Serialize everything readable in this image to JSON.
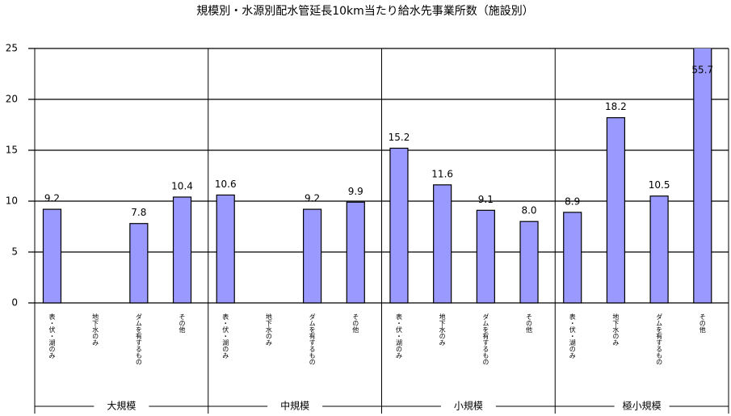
{
  "chart_data": {
    "type": "bar",
    "title": "規模別・水源別配水管延長10km当たり給水先事業所数（施設別）",
    "groups": [
      "大規模",
      "中規模",
      "小規模",
      "極小規模"
    ],
    "categories": [
      "表・伏・湖のみ",
      "地下水のみ",
      "ダムを有するもの",
      "その他",
      "表・伏・湖のみ",
      "地下水のみ",
      "ダムを有するもの",
      "その他",
      "表・伏・湖のみ",
      "地下水のみ",
      "ダムを有するもの",
      "その他",
      "表・伏・湖のみ",
      "地下水のみ",
      "ダムを有するもの",
      "その他"
    ],
    "values": [
      9.2,
      null,
      7.8,
      10.4,
      10.6,
      null,
      9.2,
      9.9,
      15.2,
      11.6,
      9.1,
      8.0,
      8.9,
      18.2,
      10.5,
      55.7
    ],
    "value_labels": [
      "9.2",
      null,
      "7.8",
      "10.4",
      "10.6",
      null,
      "9.2",
      "9.9",
      "15.2",
      "11.6",
      "9.1",
      "8.0",
      "8.9",
      "18.2",
      "10.5",
      "55.7"
    ],
    "color": "#9999ff",
    "ylim": [
      0,
      25
    ],
    "yticks": [
      0,
      5,
      10,
      15,
      20,
      25
    ],
    "grid": true
  }
}
